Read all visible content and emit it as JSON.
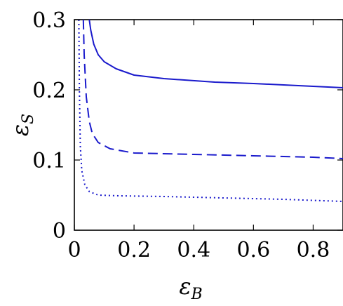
{
  "chart_data": {
    "type": "line",
    "xlabel": "ε_B",
    "ylabel": "ε_S",
    "xlabel_main": "ε",
    "xlabel_sub": "B",
    "ylabel_main": "ε",
    "ylabel_sub": "S",
    "xlim": [
      0,
      0.9
    ],
    "ylim": [
      0,
      0.3
    ],
    "xticks": [
      0,
      0.2,
      0.4,
      0.6,
      0.8
    ],
    "xtick_labels": [
      "0",
      "0.2",
      "0.4",
      "0.6",
      "0.8"
    ],
    "yticks": [
      0,
      0.1,
      0.2,
      0.3
    ],
    "ytick_labels": [
      "0",
      "0.1",
      "0.2",
      "0.3"
    ],
    "grid": false,
    "legend": "none",
    "color": "#1a1acc",
    "series": [
      {
        "style": "solid",
        "points": [
          [
            0.05,
            0.3
          ],
          [
            0.055,
            0.285
          ],
          [
            0.065,
            0.265
          ],
          [
            0.08,
            0.25
          ],
          [
            0.1,
            0.24
          ],
          [
            0.14,
            0.23
          ],
          [
            0.2,
            0.221
          ],
          [
            0.3,
            0.216
          ],
          [
            0.47,
            0.211
          ],
          [
            0.6,
            0.209
          ],
          [
            0.75,
            0.206
          ],
          [
            0.9,
            0.203
          ]
        ]
      },
      {
        "style": "dashed",
        "points": [
          [
            0.03,
            0.3
          ],
          [
            0.033,
            0.25
          ],
          [
            0.04,
            0.19
          ],
          [
            0.05,
            0.155
          ],
          [
            0.06,
            0.138
          ],
          [
            0.08,
            0.125
          ],
          [
            0.12,
            0.116
          ],
          [
            0.2,
            0.11
          ],
          [
            0.4,
            0.108
          ],
          [
            0.6,
            0.106
          ],
          [
            0.8,
            0.104
          ],
          [
            0.9,
            0.102
          ]
        ]
      },
      {
        "style": "dotted",
        "points": [
          [
            0.015,
            0.3
          ],
          [
            0.017,
            0.2
          ],
          [
            0.02,
            0.12
          ],
          [
            0.025,
            0.085
          ],
          [
            0.035,
            0.065
          ],
          [
            0.05,
            0.055
          ],
          [
            0.08,
            0.05
          ],
          [
            0.15,
            0.049
          ],
          [
            0.3,
            0.048
          ],
          [
            0.5,
            0.046
          ],
          [
            0.7,
            0.044
          ],
          [
            0.9,
            0.041
          ]
        ]
      }
    ]
  }
}
